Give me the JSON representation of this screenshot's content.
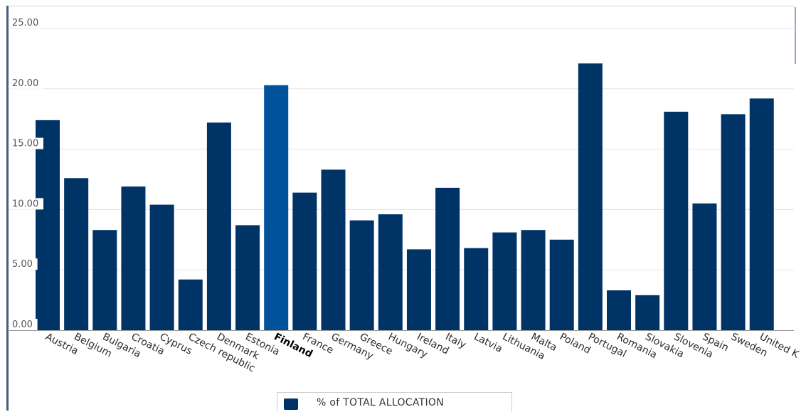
{
  "chart_data": {
    "type": "bar",
    "categories": [
      "Austria",
      "Belgium",
      "Bulgaria",
      "Croatia",
      "Cyprus",
      "Czech republic",
      "Denmark",
      "Estonia",
      "Finland",
      "France",
      "Germany",
      "Greece",
      "Hungary",
      "Ireland",
      "Italy",
      "Latvia",
      "Lithuania",
      "Malta",
      "Poland",
      "Portugal",
      "Romania",
      "Slovakia",
      "Slovenia",
      "Spain",
      "Sweden",
      "United K"
    ],
    "series": [
      {
        "name": "% of TOTAL ALLOCATION",
        "values": [
          17.4,
          12.6,
          8.3,
          11.9,
          10.4,
          4.2,
          17.2,
          8.7,
          20.3,
          11.4,
          13.3,
          9.1,
          9.6,
          6.7,
          11.8,
          6.8,
          8.1,
          8.3,
          7.5,
          22.1,
          3.3,
          2.9,
          18.1,
          10.5,
          17.9,
          19.2
        ]
      }
    ],
    "highlighted_category": "Finland",
    "yticks": [
      "0.00",
      "5.00",
      "10.00",
      "15.00",
      "20.00",
      "25.00"
    ],
    "ylim": [
      0,
      25
    ],
    "title": "",
    "xlabel": "",
    "ylabel": "",
    "grid": true,
    "legend_position": "bottom-center",
    "colors": {
      "bar": "#003366",
      "highlight": "#00529b",
      "grid": "#e3e3e3",
      "axis": "#999999"
    }
  },
  "legend": {
    "label": "% of TOTAL ALLOCATION"
  }
}
